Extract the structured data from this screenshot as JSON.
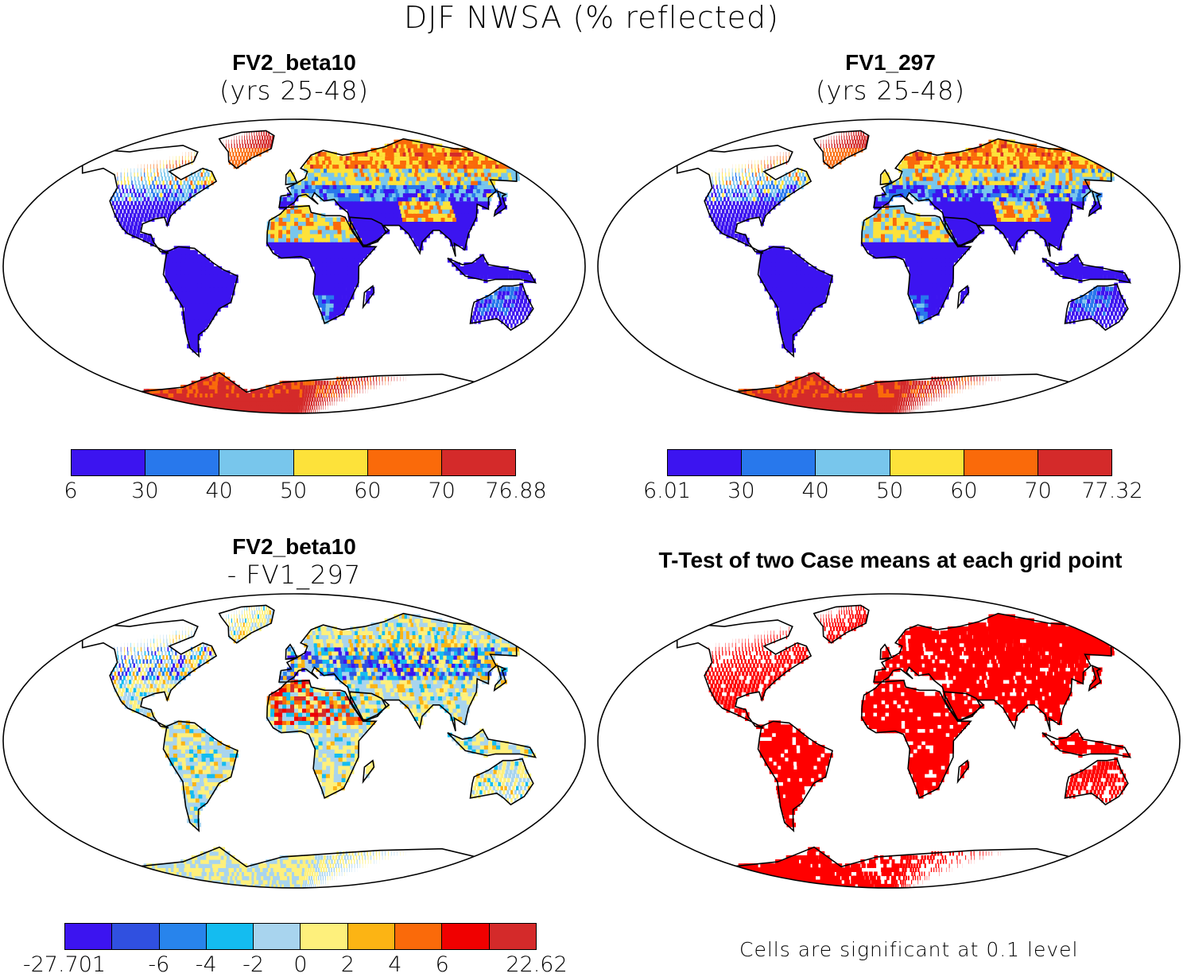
{
  "title": "DJF NWSA (% reflected)",
  "panels": [
    {
      "id": "p1",
      "title": "FV2_beta10",
      "subtitle": "(yrs 25-48)",
      "scheme": "abs",
      "field": "a"
    },
    {
      "id": "p2",
      "title": "FV1_297",
      "subtitle": "(yrs 25-48)",
      "scheme": "abs",
      "field": "b"
    },
    {
      "id": "p3",
      "title": "FV2_beta10",
      "subtitle": "- FV1_297",
      "scheme": "diff",
      "field": "d"
    },
    {
      "id": "p4",
      "title": "T-Test of two Case means at each grid point",
      "subtitle": "",
      "scheme": "sig",
      "field": "s"
    }
  ],
  "colorbars": [
    {
      "id": "cb1",
      "colors": [
        "#3c14f0",
        "#2878ec",
        "#78c6ec",
        "#fde23a",
        "#fa6a0a",
        "#d42a2a"
      ],
      "ticks": [
        "6",
        "30",
        "40",
        "50",
        "60",
        "70",
        "76.88"
      ]
    },
    {
      "id": "cb2",
      "colors": [
        "#3c14f0",
        "#2878ec",
        "#78c6ec",
        "#fde23a",
        "#fa6a0a",
        "#d42a2a"
      ],
      "ticks": [
        "6.01",
        "30",
        "40",
        "50",
        "60",
        "70",
        "77.32"
      ]
    },
    {
      "id": "cb3",
      "colors": [
        "#3c14f0",
        "#3050e0",
        "#2884ec",
        "#14bcf0",
        "#a8d4ee",
        "#fef07c",
        "#fcb414",
        "#fa6a0a",
        "#f00000",
        "#d42a2a"
      ],
      "ticks": [
        "-27.701",
        "-6",
        "-4",
        "-2",
        "0",
        "2",
        "4",
        "6",
        "22.62"
      ]
    }
  ],
  "significance": {
    "color": "#ff0000",
    "note": "Cells are significant at 0.1 level"
  }
}
